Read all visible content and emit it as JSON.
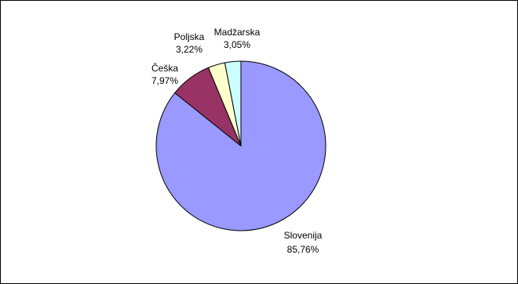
{
  "chart_data": {
    "type": "pie",
    "title": "",
    "start": "12 o'clock",
    "direction": "clockwise",
    "edge_color": "#000000",
    "slices": [
      {
        "label": "Slovenija",
        "percent_text": "85,76%",
        "value": 85.76,
        "color": "#9999ff"
      },
      {
        "label": "Češka",
        "percent_text": "7,97%",
        "value": 7.97,
        "color": "#993366"
      },
      {
        "label": "Poljska",
        "percent_text": "3,22%",
        "value": 3.22,
        "color": "#ffffcc"
      },
      {
        "label": "Madžarska",
        "percent_text": "3,05%",
        "value": 3.05,
        "color": "#ccffff"
      }
    ]
  }
}
